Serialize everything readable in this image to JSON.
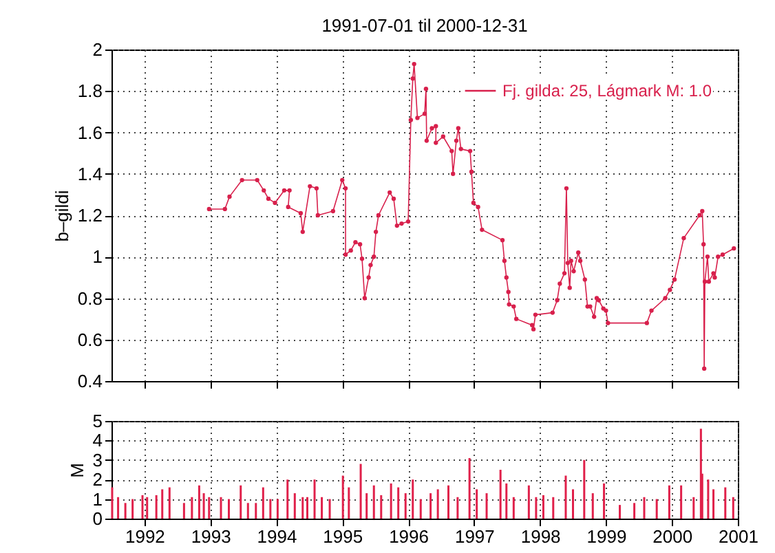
{
  "chart_data": [
    {
      "type": "line",
      "title": "1991-07-01 til 2000-12-31",
      "ylabel": "b–gildi",
      "xlim": [
        1991.5,
        2001.0
      ],
      "xticks": [
        1992,
        1993,
        1994,
        1995,
        1996,
        1997,
        1998,
        1999,
        2000,
        2001
      ],
      "ylim": [
        0.4,
        2
      ],
      "yticks": [
        0.4,
        0.6,
        0.8,
        1,
        1.2,
        1.4,
        1.6,
        1.8,
        2
      ],
      "grid": true,
      "legend": "top right",
      "marker": "circle",
      "line_style": "solid",
      "tick_labels": "y",
      "series": [
        {
          "name": "Fj. gilda: 25, Lágmark M: 1.0",
          "color": "#d8204c",
          "x": [
            1992.98,
            1993.22,
            1993.29,
            1993.48,
            1993.71,
            1993.81,
            1993.88,
            1993.98,
            1994.12,
            1994.2,
            1994.18,
            1994.37,
            1994.4,
            1994.51,
            1994.61,
            1994.63,
            1994.86,
            1995.0,
            1995.05,
            1995.05,
            1995.13,
            1995.2,
            1995.27,
            1995.3,
            1995.34,
            1995.4,
            1995.43,
            1995.48,
            1995.51,
            1995.55,
            1995.72,
            1995.78,
            1995.83,
            1995.9,
            1996.0,
            1996.04,
            1996.07,
            1996.09,
            1996.14,
            1996.25,
            1996.27,
            1996.28,
            1996.36,
            1996.42,
            1996.42,
            1996.53,
            1996.66,
            1996.68,
            1996.73,
            1996.76,
            1996.8,
            1996.94,
            1996.96,
            1996.99,
            1997.06,
            1997.12,
            1997.43,
            1997.46,
            1997.49,
            1997.52,
            1997.53,
            1997.6,
            1997.64,
            1997.88,
            1997.9,
            1997.93,
            1998.19,
            1998.26,
            1998.3,
            1998.37,
            1998.4,
            1998.42,
            1998.45,
            1998.47,
            1998.51,
            1998.58,
            1998.61,
            1998.68,
            1998.72,
            1998.76,
            1998.82,
            1998.86,
            1998.89,
            1998.96,
            1999.0,
            1999.03,
            1999.62,
            1999.69,
            1999.9,
            1999.97,
            2000.04,
            2000.18,
            2000.42,
            2000.46,
            2000.48,
            2000.49,
            2000.5,
            2000.54,
            2000.56,
            2000.63,
            2000.65,
            2000.7,
            2000.77,
            2000.94
          ],
          "values": [
            1.23,
            1.23,
            1.29,
            1.37,
            1.37,
            1.32,
            1.28,
            1.26,
            1.32,
            1.32,
            1.24,
            1.21,
            1.12,
            1.34,
            1.33,
            1.2,
            1.22,
            1.37,
            1.33,
            1.01,
            1.03,
            1.07,
            1.06,
            0.99,
            0.8,
            0.9,
            0.96,
            1.0,
            1.12,
            1.2,
            1.31,
            1.28,
            1.15,
            1.16,
            1.17,
            1.66,
            1.86,
            1.93,
            1.67,
            1.69,
            1.81,
            1.56,
            1.62,
            1.63,
            1.55,
            1.58,
            1.51,
            1.4,
            1.56,
            1.62,
            1.52,
            1.51,
            1.41,
            1.26,
            1.24,
            1.13,
            1.08,
            0.98,
            0.9,
            0.83,
            0.77,
            0.76,
            0.7,
            0.67,
            0.65,
            0.72,
            0.73,
            0.79,
            0.87,
            0.92,
            1.33,
            0.97,
            0.85,
            0.98,
            0.93,
            1.02,
            0.98,
            0.89,
            0.76,
            0.76,
            0.71,
            0.8,
            0.79,
            0.75,
            0.74,
            0.68,
            0.68,
            0.74,
            0.8,
            0.84,
            0.89,
            1.09,
            1.2,
            1.22,
            1.06,
            0.46,
            0.88,
            1.0,
            0.88,
            0.92,
            0.9,
            1.0,
            1.01,
            1.04
          ]
        }
      ]
    },
    {
      "type": "bar",
      "ylabel": "M",
      "xlim": [
        1991.5,
        2001.0
      ],
      "xticks": [
        1992,
        1993,
        1994,
        1995,
        1996,
        1997,
        1998,
        1999,
        2000,
        2001
      ],
      "ylim": [
        0,
        5
      ],
      "yticks": [
        0,
        1,
        2,
        3,
        4,
        5
      ],
      "grid": true,
      "series": [
        {
          "color": "#e0204a",
          "x": [
            1991.51,
            1991.6,
            1991.71,
            1991.82,
            1991.97,
            1992.04,
            1992.18,
            1992.27,
            1992.38,
            1992.6,
            1992.72,
            1992.83,
            1992.9,
            1992.98,
            1993.16,
            1993.28,
            1993.46,
            1993.57,
            1993.69,
            1993.8,
            1993.91,
            1994.02,
            1994.17,
            1994.28,
            1994.4,
            1994.47,
            1994.58,
            1994.69,
            1994.81,
            1995.01,
            1995.1,
            1995.28,
            1995.37,
            1995.48,
            1995.59,
            1995.74,
            1995.85,
            1995.96,
            1996.07,
            1996.19,
            1996.34,
            1996.45,
            1996.61,
            1996.75,
            1996.93,
            1997.04,
            1997.19,
            1997.4,
            1997.49,
            1997.6,
            1997.83,
            1997.94,
            1998.05,
            1998.2,
            1998.39,
            1998.5,
            1998.67,
            1998.8,
            1998.97,
            1999.21,
            1999.43,
            1999.58,
            1999.77,
            1999.96,
            2000.14,
            2000.33,
            2000.44,
            2000.46,
            2000.55,
            2000.63,
            2000.81,
            2000.93
          ],
          "values": [
            1.6,
            1.1,
            0.8,
            1.0,
            1.2,
            1.1,
            1.2,
            1.5,
            1.6,
            0.8,
            1.1,
            1.7,
            1.3,
            1.1,
            1.1,
            1.0,
            1.7,
            0.8,
            0.8,
            1.6,
            1.0,
            1.0,
            2.0,
            1.3,
            1.1,
            1.1,
            2.0,
            1.1,
            1.0,
            2.2,
            1.6,
            2.8,
            1.3,
            1.7,
            1.2,
            1.8,
            1.6,
            1.3,
            2.0,
            1.0,
            1.3,
            1.5,
            1.7,
            1.1,
            3.1,
            1.5,
            1.3,
            2.5,
            1.8,
            1.1,
            1.7,
            1.1,
            1.2,
            1.1,
            2.2,
            1.5,
            3.0,
            1.3,
            1.8,
            0.7,
            0.8,
            1.1,
            1.0,
            1.7,
            1.7,
            1.1,
            4.6,
            2.3,
            2.0,
            1.5,
            1.6,
            1.1
          ]
        }
      ]
    }
  ]
}
